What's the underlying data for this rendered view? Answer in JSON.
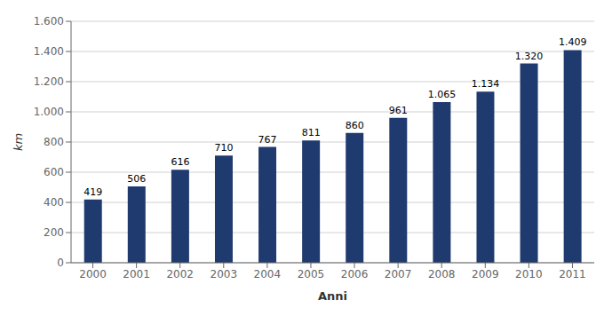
{
  "chart_data": {
    "type": "bar",
    "categories": [
      "2000",
      "2001",
      "2002",
      "2003",
      "2004",
      "2005",
      "2006",
      "2007",
      "2008",
      "2009",
      "2010",
      "2011"
    ],
    "values": [
      419,
      506,
      616,
      710,
      767,
      811,
      860,
      961,
      1065,
      1134,
      1320,
      1409
    ],
    "value_labels": [
      "419",
      "506",
      "616",
      "710",
      "767",
      "811",
      "860",
      "961",
      "1.065",
      "1.134",
      "1.320",
      "1.409"
    ],
    "data_labels": true,
    "color": "#1F3A6E",
    "xlabel": "Anni",
    "ylabel": "km",
    "ylim": [
      0,
      1600
    ],
    "yticks": [
      0,
      200,
      400,
      600,
      800,
      {
        "value": 1000,
        "label": "1.000"
      },
      {
        "value": 1200,
        "label": "1.200"
      },
      {
        "value": 1400,
        "label": "1.400"
      },
      {
        "value": 1600,
        "label": "1.600"
      }
    ],
    "grid": true
  }
}
